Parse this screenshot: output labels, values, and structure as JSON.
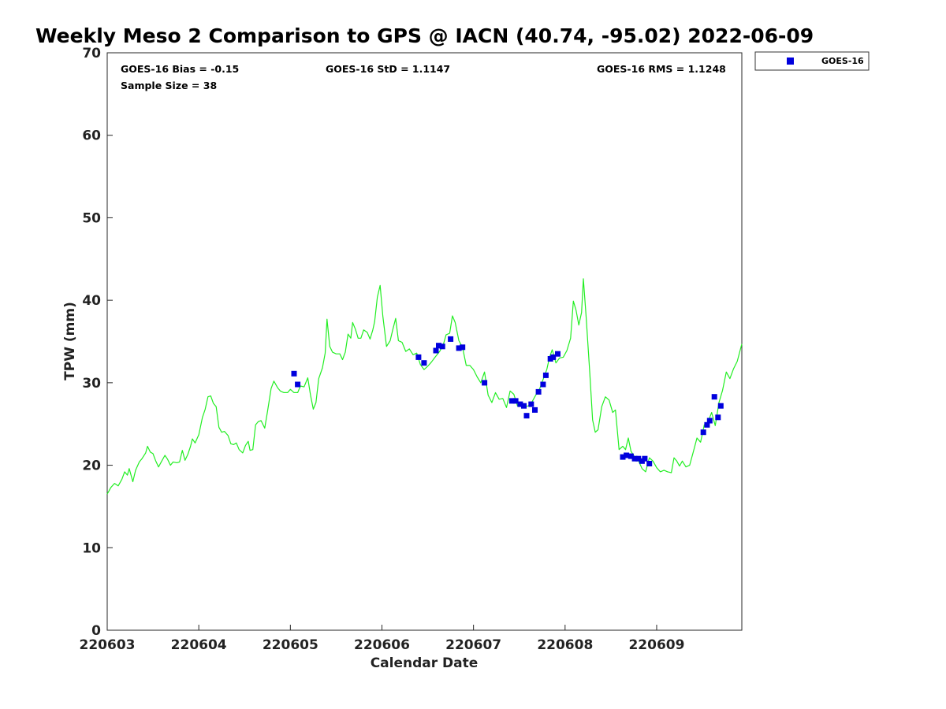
{
  "chart_data": {
    "type": "scatter",
    "title": "Weekly Meso 2 Comparison to GPS @ IACN (40.74, -95.02) 2022-06-09",
    "xlabel": "Calendar Date",
    "ylabel": "TPW (mm)",
    "xlim": [
      220603,
      220609.93
    ],
    "ylim": [
      0,
      70
    ],
    "x_ticks": [
      220603,
      220604,
      220605,
      220606,
      220607,
      220608,
      220609
    ],
    "x_tick_labels": [
      "220603",
      "220604",
      "220605",
      "220606",
      "220607",
      "220608",
      "220609"
    ],
    "y_ticks": [
      0,
      10,
      20,
      30,
      40,
      50,
      60,
      70
    ],
    "y_tick_labels": [
      "0",
      "10",
      "20",
      "30",
      "40",
      "50",
      "60",
      "70"
    ],
    "grid": false,
    "stats": {
      "bias": "GOES-16 Bias = -0.15",
      "std": "GOES-16 StD = 1.1147",
      "rms": "GOES-16 RMS = 1.1248",
      "sample_size": "Sample Size = 38"
    },
    "legend": {
      "position": "top-right outside",
      "entries": [
        "GOES-16"
      ]
    },
    "series": [
      {
        "name": "GOES-16",
        "kind": "scatter",
        "color": "#0000dd",
        "points": [
          [
            220605.04,
            31.1
          ],
          [
            220605.08,
            29.8
          ],
          [
            220606.4,
            33.1
          ],
          [
            220606.46,
            32.4
          ],
          [
            220606.59,
            33.9
          ],
          [
            220606.62,
            34.5
          ],
          [
            220606.66,
            34.4
          ],
          [
            220606.75,
            35.3
          ],
          [
            220606.84,
            34.2
          ],
          [
            220606.88,
            34.3
          ],
          [
            220607.12,
            30.0
          ],
          [
            220607.42,
            27.8
          ],
          [
            220607.46,
            27.8
          ],
          [
            220607.51,
            27.4
          ],
          [
            220607.55,
            27.2
          ],
          [
            220607.58,
            26.0
          ],
          [
            220607.63,
            27.4
          ],
          [
            220607.67,
            26.7
          ],
          [
            220607.71,
            28.9
          ],
          [
            220607.76,
            29.8
          ],
          [
            220607.79,
            30.9
          ],
          [
            220607.84,
            32.9
          ],
          [
            220607.87,
            33.1
          ],
          [
            220607.92,
            33.5
          ],
          [
            220608.63,
            21.0
          ],
          [
            220608.67,
            21.2
          ],
          [
            220608.72,
            21.1
          ],
          [
            220608.76,
            20.8
          ],
          [
            220608.8,
            20.8
          ],
          [
            220608.84,
            20.5
          ],
          [
            220608.87,
            20.8
          ],
          [
            220608.92,
            20.2
          ],
          [
            220609.51,
            24.0
          ],
          [
            220609.55,
            24.9
          ],
          [
            220609.58,
            25.4
          ],
          [
            220609.63,
            28.3
          ],
          [
            220609.67,
            25.8
          ],
          [
            220609.7,
            27.2
          ]
        ]
      },
      {
        "kind": "line",
        "color": "#22ee22",
        "points": [
          [
            220603.0,
            16.5
          ],
          [
            220603.04,
            17.3
          ],
          [
            220603.08,
            17.8
          ],
          [
            220603.12,
            17.5
          ],
          [
            220603.16,
            18.3
          ],
          [
            220603.19,
            19.2
          ],
          [
            220603.22,
            18.8
          ],
          [
            220603.24,
            19.6
          ],
          [
            220603.28,
            18.0
          ],
          [
            220603.31,
            19.4
          ],
          [
            220603.35,
            20.4
          ],
          [
            220603.38,
            20.8
          ],
          [
            220603.42,
            21.5
          ],
          [
            220603.44,
            22.3
          ],
          [
            220603.47,
            21.6
          ],
          [
            220603.5,
            21.4
          ],
          [
            220603.53,
            20.5
          ],
          [
            220603.56,
            19.8
          ],
          [
            220603.6,
            20.6
          ],
          [
            220603.63,
            21.2
          ],
          [
            220603.66,
            20.7
          ],
          [
            220603.69,
            20.0
          ],
          [
            220603.72,
            20.4
          ],
          [
            220603.76,
            20.3
          ],
          [
            220603.79,
            20.4
          ],
          [
            220603.82,
            21.8
          ],
          [
            220603.85,
            20.6
          ],
          [
            220603.88,
            21.3
          ],
          [
            220603.91,
            22.3
          ],
          [
            220603.93,
            23.2
          ],
          [
            220603.96,
            22.7
          ],
          [
            220604.0,
            23.7
          ],
          [
            220604.04,
            25.8
          ],
          [
            220604.07,
            26.8
          ],
          [
            220604.1,
            28.3
          ],
          [
            220604.13,
            28.4
          ],
          [
            220604.16,
            27.5
          ],
          [
            220604.19,
            27.1
          ],
          [
            220604.22,
            24.6
          ],
          [
            220604.25,
            24.0
          ],
          [
            220604.28,
            24.1
          ],
          [
            220604.32,
            23.6
          ],
          [
            220604.35,
            22.6
          ],
          [
            220604.38,
            22.5
          ],
          [
            220604.41,
            22.7
          ],
          [
            220604.44,
            21.9
          ],
          [
            220604.48,
            21.5
          ],
          [
            220604.51,
            22.4
          ],
          [
            220604.54,
            22.9
          ],
          [
            220604.56,
            21.8
          ],
          [
            220604.59,
            21.9
          ],
          [
            220604.62,
            24.9
          ],
          [
            220604.65,
            25.3
          ],
          [
            220604.68,
            25.4
          ],
          [
            220604.72,
            24.5
          ],
          [
            220604.75,
            26.5
          ],
          [
            220604.79,
            29.3
          ],
          [
            220604.82,
            30.2
          ],
          [
            220604.86,
            29.4
          ],
          [
            220604.89,
            29.0
          ],
          [
            220604.93,
            28.8
          ],
          [
            220604.97,
            28.8
          ],
          [
            220605.0,
            29.2
          ],
          [
            220605.04,
            28.8
          ],
          [
            220605.08,
            28.8
          ],
          [
            220605.11,
            29.6
          ],
          [
            220605.15,
            29.5
          ],
          [
            220605.19,
            30.6
          ],
          [
            220605.22,
            28.5
          ],
          [
            220605.25,
            26.8
          ],
          [
            220605.28,
            27.6
          ],
          [
            220605.31,
            30.5
          ],
          [
            220605.35,
            31.8
          ],
          [
            220605.38,
            33.6
          ],
          [
            220605.4,
            37.7
          ],
          [
            220605.43,
            34.4
          ],
          [
            220605.46,
            33.7
          ],
          [
            220605.5,
            33.5
          ],
          [
            220605.54,
            33.5
          ],
          [
            220605.57,
            32.8
          ],
          [
            220605.6,
            33.7
          ],
          [
            220605.63,
            35.9
          ],
          [
            220605.66,
            35.4
          ],
          [
            220605.68,
            37.3
          ],
          [
            220605.71,
            36.5
          ],
          [
            220605.74,
            35.4
          ],
          [
            220605.77,
            35.4
          ],
          [
            220605.8,
            36.4
          ],
          [
            220605.84,
            36.1
          ],
          [
            220605.87,
            35.3
          ],
          [
            220605.9,
            36.4
          ],
          [
            220605.92,
            37.4
          ],
          [
            220605.95,
            40.4
          ],
          [
            220605.98,
            41.8
          ],
          [
            220606.01,
            38.1
          ],
          [
            220606.05,
            34.4
          ],
          [
            220606.09,
            35.1
          ],
          [
            220606.12,
            36.5
          ],
          [
            220606.15,
            37.8
          ],
          [
            220606.18,
            35.1
          ],
          [
            220606.22,
            34.9
          ],
          [
            220606.26,
            33.8
          ],
          [
            220606.3,
            34.1
          ],
          [
            220606.34,
            33.4
          ],
          [
            220606.38,
            33.6
          ],
          [
            220606.42,
            32.2
          ],
          [
            220606.46,
            31.6
          ],
          [
            220606.5,
            32.0
          ],
          [
            220606.54,
            32.5
          ],
          [
            220606.58,
            33.1
          ],
          [
            220606.63,
            33.8
          ],
          [
            220606.67,
            34.6
          ],
          [
            220606.7,
            35.8
          ],
          [
            220606.74,
            36.0
          ],
          [
            220606.77,
            38.1
          ],
          [
            220606.8,
            37.3
          ],
          [
            220606.84,
            35.1
          ],
          [
            220606.88,
            34.3
          ],
          [
            220606.92,
            32.1
          ],
          [
            220606.96,
            32.1
          ],
          [
            220607.0,
            31.6
          ],
          [
            220607.04,
            30.7
          ],
          [
            220607.08,
            30.0
          ],
          [
            220607.12,
            31.3
          ],
          [
            220607.16,
            28.5
          ],
          [
            220607.2,
            27.6
          ],
          [
            220607.24,
            28.8
          ],
          [
            220607.28,
            28.0
          ],
          [
            220607.32,
            28.1
          ],
          [
            220607.36,
            27.0
          ],
          [
            220607.4,
            29.0
          ],
          [
            220607.44,
            28.6
          ],
          [
            220607.48,
            27.2
          ],
          [
            220607.52,
            27.6
          ],
          [
            220607.56,
            27.1
          ],
          [
            220607.6,
            27.2
          ],
          [
            220607.64,
            27.7
          ],
          [
            220607.68,
            28.5
          ],
          [
            220607.72,
            29.2
          ],
          [
            220607.76,
            30.4
          ],
          [
            220607.8,
            31.6
          ],
          [
            220607.83,
            33.1
          ],
          [
            220607.86,
            34.0
          ],
          [
            220607.9,
            32.4
          ],
          [
            220607.94,
            33.0
          ],
          [
            220607.98,
            33.1
          ],
          [
            220608.02,
            33.9
          ],
          [
            220608.06,
            35.4
          ],
          [
            220608.09,
            39.9
          ],
          [
            220608.12,
            38.8
          ],
          [
            220608.15,
            37.0
          ],
          [
            220608.18,
            38.5
          ],
          [
            220608.2,
            42.6
          ],
          [
            220608.23,
            38.0
          ],
          [
            220608.27,
            31.1
          ],
          [
            220608.3,
            25.5
          ],
          [
            220608.33,
            24.0
          ],
          [
            220608.36,
            24.3
          ],
          [
            220608.4,
            27.1
          ],
          [
            220608.44,
            28.3
          ],
          [
            220608.48,
            27.9
          ],
          [
            220608.52,
            26.4
          ],
          [
            220608.55,
            26.7
          ],
          [
            220608.59,
            21.9
          ],
          [
            220608.63,
            22.3
          ],
          [
            220608.66,
            21.9
          ],
          [
            220608.69,
            23.3
          ],
          [
            220608.72,
            21.7
          ],
          [
            220608.76,
            21.0
          ],
          [
            220608.8,
            20.6
          ],
          [
            220608.84,
            19.6
          ],
          [
            220608.88,
            19.2
          ],
          [
            220608.92,
            20.9
          ],
          [
            220608.96,
            20.5
          ],
          [
            220609.0,
            19.7
          ],
          [
            220609.04,
            19.2
          ],
          [
            220609.08,
            19.4
          ],
          [
            220609.12,
            19.2
          ],
          [
            220609.16,
            19.1
          ],
          [
            220609.19,
            20.9
          ],
          [
            220609.22,
            20.5
          ],
          [
            220609.25,
            19.9
          ],
          [
            220609.28,
            20.5
          ],
          [
            220609.32,
            19.8
          ],
          [
            220609.36,
            20.0
          ],
          [
            220609.4,
            21.6
          ],
          [
            220609.44,
            23.3
          ],
          [
            220609.48,
            22.8
          ],
          [
            220609.52,
            24.9
          ],
          [
            220609.56,
            25.2
          ],
          [
            220609.6,
            26.4
          ],
          [
            220609.64,
            24.8
          ],
          [
            220609.68,
            27.6
          ],
          [
            220609.72,
            29.1
          ],
          [
            220609.76,
            31.3
          ],
          [
            220609.8,
            30.5
          ],
          [
            220609.84,
            31.7
          ],
          [
            220609.88,
            32.6
          ],
          [
            220609.93,
            34.7
          ]
        ]
      }
    ]
  }
}
